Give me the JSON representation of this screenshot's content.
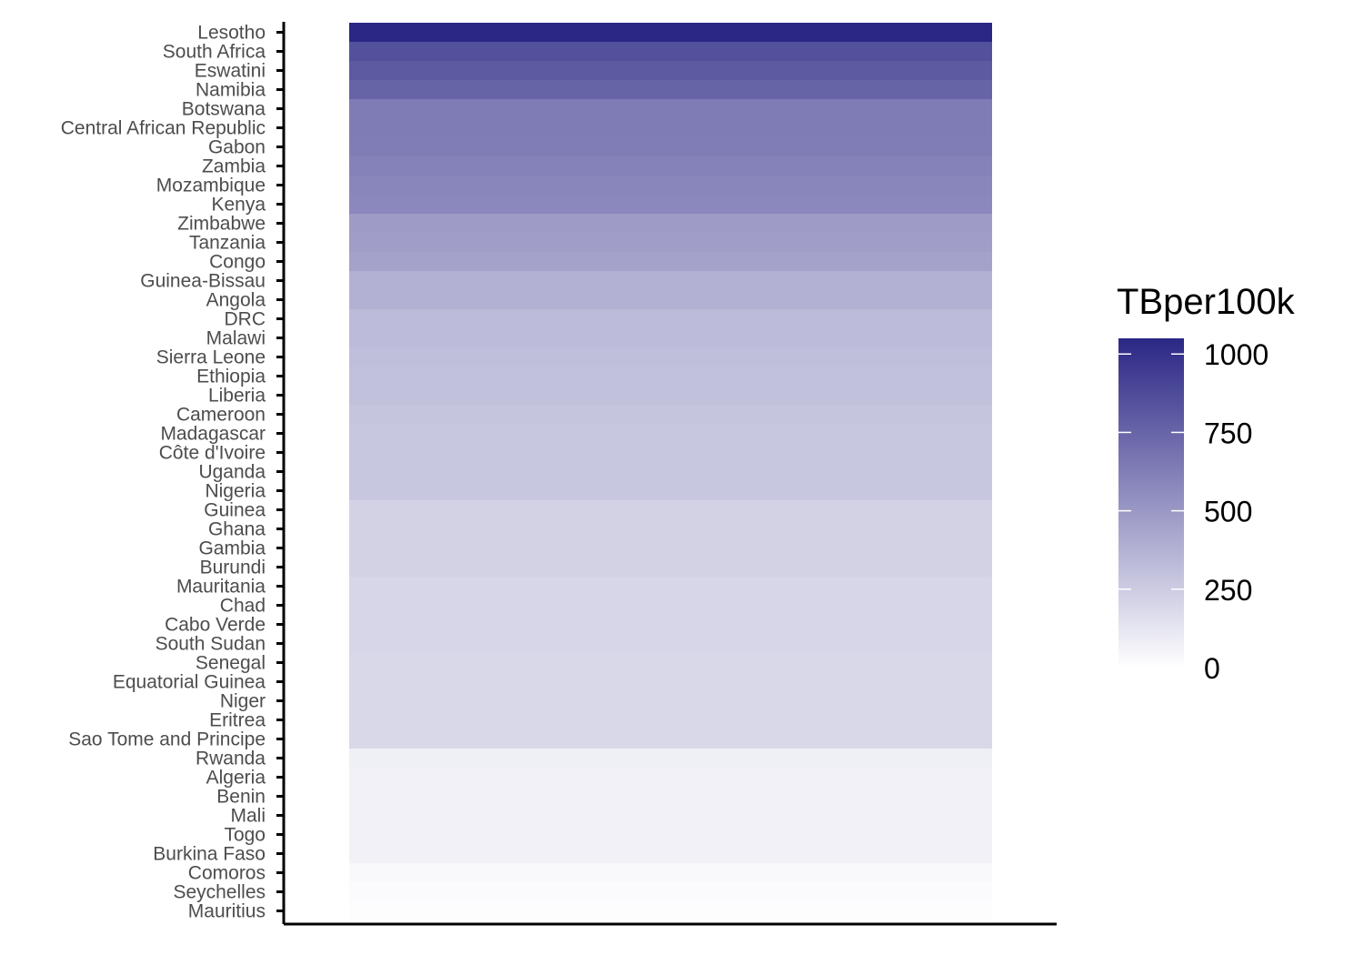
{
  "chart_data": {
    "type": "heatmap",
    "title": "",
    "xlabel": "",
    "ylabel": "",
    "categories": [
      "Lesotho",
      "South Africa",
      "Eswatini",
      "Namibia",
      "Botswana",
      "Central African Republic",
      "Gabon",
      "Zambia",
      "Mozambique",
      "Kenya",
      "Zimbabwe",
      "Tanzania",
      "Congo",
      "Guinea-Bissau",
      "Angola",
      "DRC",
      "Malawi",
      "Sierra Leone",
      "Ethiopia",
      "Liberia",
      "Cameroon",
      "Madagascar",
      "Côte d'Ivoire",
      "Uganda",
      "Nigeria",
      "Guinea",
      "Ghana",
      "Gambia",
      "Burundi",
      "Mauritania",
      "Chad",
      "Cabo Verde",
      "South Sudan",
      "Senegal",
      "Equatorial Guinea",
      "Niger",
      "Eritrea",
      "Sao Tome and Principe",
      "Rwanda",
      "Algeria",
      "Benin",
      "Mali",
      "Togo",
      "Burkina Faso",
      "Comoros",
      "Seychelles",
      "Mauritius"
    ],
    "series": [
      {
        "values": [
          1050,
          850,
          800,
          760,
          640,
          640,
          630,
          610,
          590,
          580,
          480,
          470,
          450,
          380,
          380,
          330,
          330,
          310,
          300,
          300,
          280,
          270,
          270,
          270,
          270,
          220,
          220,
          220,
          220,
          200,
          200,
          200,
          200,
          190,
          190,
          190,
          190,
          190,
          80,
          70,
          70,
          70,
          70,
          70,
          30,
          20,
          10
        ]
      }
    ],
    "legend": {
      "title": "TBper100k",
      "position": "right",
      "breaks": [
        0,
        250,
        500,
        750,
        1000
      ],
      "labels": [
        "0",
        "250",
        "500",
        "750",
        "1000"
      ],
      "low_color": "#ffffff",
      "high_color": "#2b2785",
      "range": [
        0,
        1050
      ]
    },
    "grid": false
  }
}
